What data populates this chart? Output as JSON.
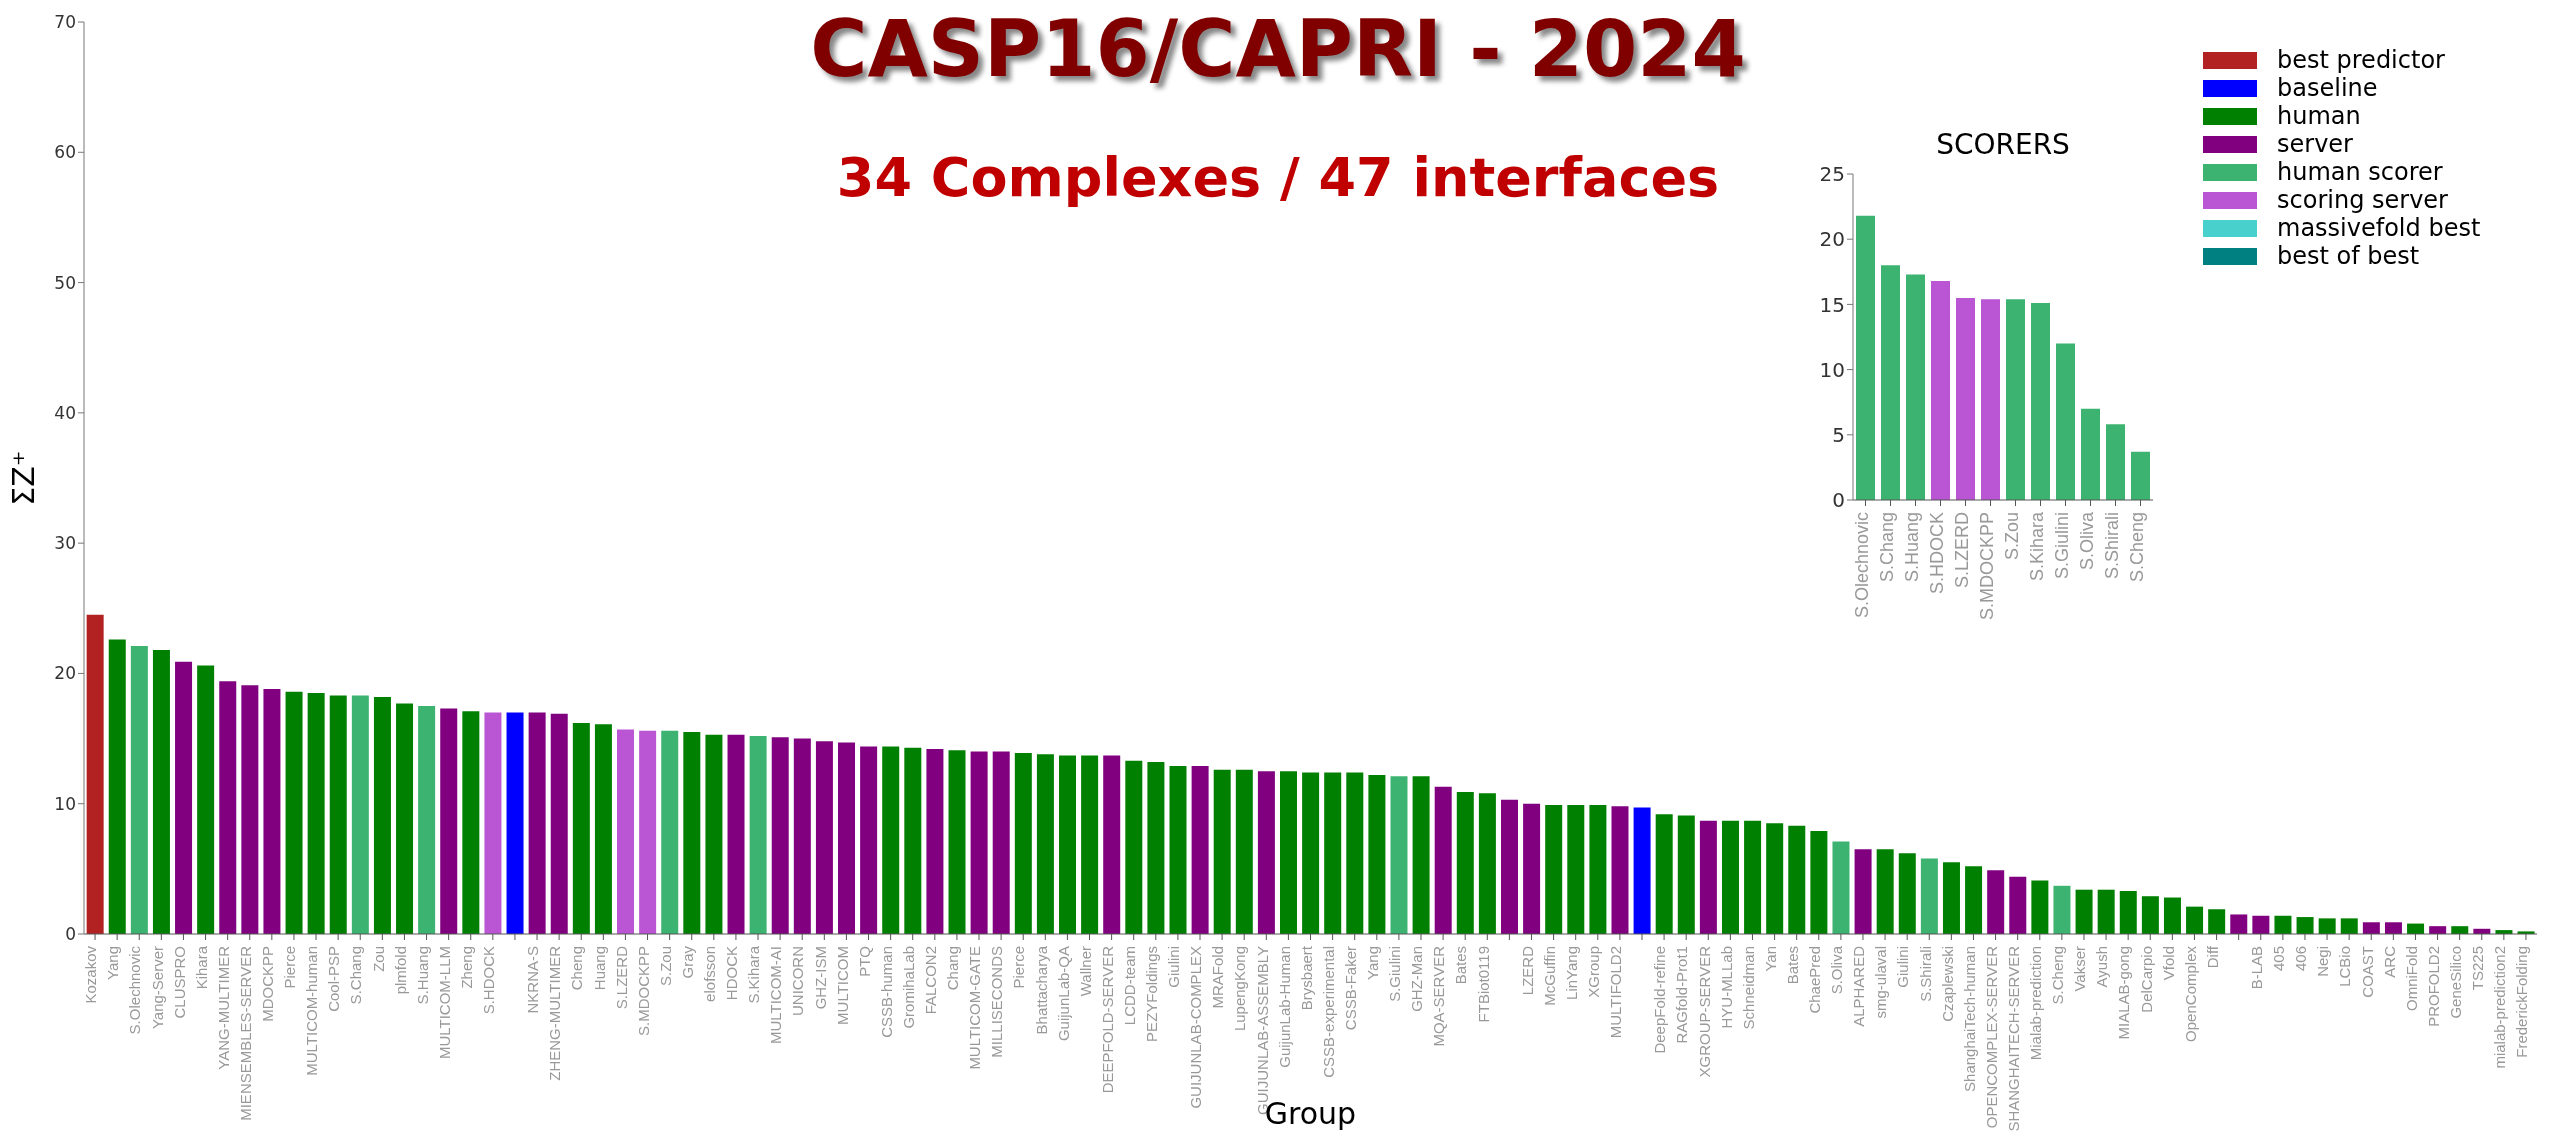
{
  "chart_data": [
    {
      "type": "bar",
      "title": "CASP16/CAPRI - 2024",
      "subtitle": "34 Complexes / 47 interfaces",
      "xlabel": "Group",
      "ylabel": "ΣZ⁺",
      "categories": [
        "Kozakov",
        "Yang",
        "S.Olechnovic",
        "Yang-Server",
        "CLUSPRO",
        "Kihara",
        "YANG-MULTIMER",
        "MIENSEMBLES-SERVER",
        "MDOCKPP",
        "Pierce",
        "MULTICOM-human",
        "Cool-PSP",
        "S.Chang",
        "Zou",
        "plmfold",
        "S.Huang",
        "MULTICOM-LLM",
        "Zheng",
        "S.HDOCK",
        null,
        "NKRNA-S",
        "ZHENG-MULTIMER",
        "Cheng",
        "Huang",
        "S.LZERD",
        "S.MDOCKPP",
        "S.Zou",
        "Gray",
        "elofsson",
        "HDOCK",
        "S.Kihara",
        "MULTICOM-AI",
        "UNICORN",
        "GHZ-ISM",
        "MULTICOM",
        "PTQ",
        "CSSB-human",
        "GromihaLab",
        "FALCON2",
        "Chang",
        "MULTICOM-GATE",
        "MILLISECONDS",
        "Pierce",
        "Bhattacharya",
        "GuijunLab-QA",
        "Wallner",
        "DEEPFOLD-SERVER",
        "LCDD-team",
        "PEZYFoldings",
        "Giulini",
        "GUIJUNLAB-COMPLEX",
        "MRAFold",
        "LupengKong",
        "GUIJUNLAB-ASSEMBLY",
        "GuijunLab-Human",
        "Brysbaert",
        "CSSB-experimental",
        "CSSB-Faker",
        "Yang",
        "S.Giulini",
        "GHZ-Man",
        "MQA-SERVER",
        "Bates",
        "FTBiot0119",
        null,
        "LZERD",
        "McGuffin",
        "LinYang",
        "XGroup",
        "MULTIFOLD2",
        null,
        "DeepFold-refine",
        "RAGfold-Prot1",
        "XGROUP-SERVER",
        "HYU-MLLab",
        "Schneidman",
        "Yan",
        "Bates",
        "ChaePred",
        "S.Oliva",
        "ALPHARED",
        "smg-ulaval",
        "Giulini",
        "S.Shirali",
        "Czaplewski",
        "ShanghaiTech-human",
        "OPENCOMPLEX-SERVER",
        "SHANGHAITECH-SERVER",
        "Mialab-prediction",
        "S.Cheng",
        "Vakser",
        "Ayush",
        "MIALAB-gong",
        "DelCarpio",
        "Vfold",
        "OpenComplex",
        "Diff",
        null,
        "B-LAB",
        "405",
        "406",
        "Negi",
        "LCBio",
        "COAST",
        "ARC",
        "OmniFold",
        "PROFOLD2",
        "GeneSilico",
        "TS225",
        "mialab-prediction2",
        "FrederickFolding"
      ],
      "stacked": true,
      "series": [
        {
          "name": "best predictor",
          "color": "#b22222",
          "values": [
            24.5,
            null,
            null,
            null,
            null,
            null,
            null,
            null,
            null,
            null,
            null,
            null,
            null,
            null,
            null,
            null,
            null,
            null,
            null,
            null,
            null,
            null,
            null,
            null,
            null,
            null,
            null,
            null,
            null,
            null,
            null,
            null,
            null,
            null,
            null,
            null,
            null,
            null,
            null,
            null,
            null,
            null,
            null,
            null,
            null,
            null,
            null,
            null,
            null,
            null,
            null,
            null,
            null,
            null,
            null,
            null,
            null,
            null,
            null,
            null,
            null,
            null,
            null,
            null,
            null,
            null,
            null,
            null,
            null,
            null,
            null,
            null,
            null,
            null,
            null,
            null,
            null,
            null,
            null,
            null,
            null,
            null,
            null,
            null,
            null,
            null,
            null,
            null,
            null,
            null,
            null,
            null,
            null,
            null,
            null,
            null,
            null,
            null,
            null,
            null,
            null,
            null,
            null,
            null,
            null,
            null,
            null,
            null,
            null,
            null,
            null
          ]
        },
        {
          "name": "baseline",
          "color": "#0000ff",
          "values": [
            null,
            null,
            null,
            null,
            null,
            null,
            null,
            null,
            null,
            null,
            null,
            null,
            null,
            null,
            null,
            null,
            null,
            null,
            null,
            17.0,
            null,
            null,
            null,
            null,
            null,
            null,
            null,
            null,
            null,
            null,
            null,
            null,
            null,
            null,
            null,
            null,
            null,
            null,
            null,
            null,
            null,
            null,
            null,
            null,
            null,
            null,
            null,
            null,
            null,
            null,
            null,
            null,
            null,
            null,
            null,
            null,
            null,
            null,
            null,
            null,
            null,
            null,
            null,
            null,
            null,
            null,
            null,
            null,
            null,
            null,
            9.7,
            null,
            null,
            null,
            null,
            null,
            null,
            null,
            null,
            null,
            null,
            null,
            null,
            null,
            null,
            null,
            null,
            null,
            null,
            null,
            null,
            null,
            null,
            null,
            null,
            null,
            null,
            null,
            null,
            null,
            null,
            null,
            null,
            null,
            null,
            null,
            null,
            null,
            null,
            null,
            null
          ]
        },
        {
          "name": "human",
          "color": "#008000",
          "values": [
            null,
            22.6,
            null,
            21.8,
            null,
            20.6,
            null,
            null,
            null,
            18.6,
            18.5,
            18.3,
            null,
            18.2,
            17.7,
            null,
            null,
            17.1,
            null,
            null,
            null,
            null,
            16.2,
            16.1,
            null,
            null,
            null,
            15.5,
            15.3,
            null,
            null,
            null,
            null,
            null,
            null,
            null,
            14.4,
            14.3,
            null,
            14.1,
            null,
            null,
            13.9,
            13.8,
            13.7,
            13.7,
            null,
            13.3,
            13.2,
            12.9,
            null,
            12.6,
            12.6,
            null,
            12.5,
            12.4,
            12.4,
            12.4,
            12.2,
            null,
            12.1,
            null,
            10.9,
            10.8,
            null,
            null,
            9.9,
            9.9,
            9.9,
            null,
            null,
            9.2,
            9.1,
            null,
            8.7,
            8.7,
            8.5,
            8.3,
            7.9,
            null,
            null,
            6.5,
            6.2,
            null,
            5.5,
            5.2,
            null,
            null,
            4.1,
            null,
            3.4,
            3.4,
            3.3,
            2.9,
            2.8,
            2.1,
            1.9,
            null,
            null,
            1.4,
            1.3,
            1.2,
            1.2,
            null,
            null,
            0.8,
            null,
            0.6,
            null,
            0.3,
            0.2
          ]
        },
        {
          "name": "server",
          "color": "#800080",
          "values": [
            null,
            null,
            null,
            null,
            20.9,
            null,
            19.4,
            19.1,
            18.8,
            null,
            null,
            null,
            null,
            null,
            null,
            null,
            17.3,
            null,
            null,
            null,
            17.0,
            16.9,
            null,
            null,
            null,
            null,
            null,
            null,
            null,
            15.3,
            null,
            15.1,
            15.0,
            14.8,
            14.7,
            14.4,
            null,
            null,
            14.2,
            null,
            14.0,
            14.0,
            null,
            null,
            null,
            null,
            13.7,
            null,
            null,
            null,
            12.9,
            null,
            null,
            12.5,
            null,
            null,
            null,
            null,
            null,
            null,
            null,
            11.3,
            null,
            null,
            10.3,
            10.0,
            null,
            null,
            null,
            9.8,
            null,
            null,
            null,
            8.7,
            null,
            null,
            null,
            null,
            null,
            null,
            6.5,
            null,
            null,
            null,
            null,
            null,
            4.9,
            4.4,
            null,
            null,
            null,
            null,
            null,
            null,
            null,
            null,
            null,
            1.5,
            1.4,
            null,
            null,
            null,
            null,
            0.9,
            0.9,
            null,
            0.6,
            null,
            0.4,
            null,
            null
          ]
        },
        {
          "name": "human scorer",
          "color": "#3cb371",
          "values": [
            null,
            null,
            22.1,
            null,
            null,
            null,
            null,
            null,
            null,
            null,
            null,
            null,
            18.3,
            null,
            null,
            17.5,
            null,
            null,
            null,
            null,
            null,
            null,
            null,
            null,
            null,
            null,
            15.6,
            null,
            null,
            null,
            15.2,
            null,
            null,
            null,
            null,
            null,
            null,
            null,
            null,
            null,
            null,
            null,
            null,
            null,
            null,
            null,
            null,
            null,
            null,
            null,
            null,
            null,
            null,
            null,
            null,
            null,
            null,
            null,
            null,
            12.1,
            null,
            null,
            null,
            null,
            null,
            null,
            null,
            null,
            null,
            null,
            null,
            null,
            null,
            null,
            null,
            null,
            null,
            null,
            null,
            7.1,
            null,
            null,
            null,
            5.8,
            null,
            null,
            null,
            null,
            null,
            3.7,
            null,
            null,
            null,
            null,
            null,
            null,
            null,
            null,
            null,
            null,
            null,
            null,
            null,
            null,
            null,
            null,
            null,
            null,
            null,
            null,
            null
          ]
        },
        {
          "name": "scoring server",
          "color": "#ba55d3",
          "values": [
            null,
            null,
            null,
            null,
            null,
            null,
            null,
            null,
            null,
            null,
            null,
            null,
            null,
            null,
            null,
            null,
            null,
            null,
            17.0,
            null,
            null,
            null,
            null,
            null,
            15.7,
            15.6,
            null,
            null,
            null,
            null,
            null,
            null,
            null,
            null,
            null,
            null,
            null,
            null,
            null,
            null,
            null,
            null,
            null,
            null,
            null,
            null,
            null,
            null,
            null,
            null,
            null,
            null,
            null,
            null,
            null,
            null,
            null,
            null,
            null,
            null,
            null,
            null,
            null,
            null,
            null,
            null,
            null,
            null,
            null,
            null,
            null,
            null,
            null,
            null,
            null,
            null,
            null,
            null,
            null,
            null,
            null,
            null,
            null,
            null,
            null,
            null,
            null,
            null,
            null,
            null,
            null,
            null,
            null,
            null,
            null,
            null,
            null,
            null,
            null,
            null,
            null,
            null,
            null,
            null,
            null,
            null,
            null,
            null,
            null,
            null,
            null
          ]
        },
        {
          "name": "massivefold best",
          "color": "#48d1cc",
          "values": [
            null,
            null,
            null,
            null,
            null,
            null,
            null,
            null,
            null,
            null,
            null,
            null,
            null,
            null,
            null,
            null,
            null,
            null,
            null,
            null,
            null,
            null,
            null,
            null,
            null,
            null,
            null,
            null,
            null,
            null,
            null,
            null,
            null,
            null,
            null,
            null,
            null,
            null,
            null,
            null,
            null,
            null,
            null,
            null,
            null,
            null,
            null,
            null,
            null,
            null,
            null,
            null,
            null,
            null,
            null,
            null,
            null,
            null,
            null,
            null,
            null,
            null,
            null,
            null,
            null,
            null,
            null,
            null,
            null,
            null,
            null,
            null,
            null,
            null,
            null,
            null,
            null,
            null,
            null,
            null,
            null,
            null,
            null,
            null,
            null,
            null,
            null,
            null,
            null,
            null,
            null,
            null,
            null,
            null,
            null,
            null,
            null,
            null,
            null,
            null,
            null,
            null,
            null,
            null,
            null,
            null,
            null,
            null,
            null,
            null,
            null
          ]
        },
        {
          "name": "best of best",
          "color": "#008080",
          "values": [
            null,
            null,
            null,
            null,
            null,
            null,
            null,
            null,
            null,
            null,
            null,
            null,
            null,
            null,
            null,
            null,
            null,
            null,
            null,
            null,
            null,
            null,
            null,
            null,
            null,
            null,
            null,
            null,
            null,
            null,
            null,
            null,
            null,
            null,
            null,
            null,
            null,
            null,
            null,
            null,
            null,
            null,
            null,
            null,
            null,
            null,
            null,
            null,
            null,
            null,
            null,
            null,
            null,
            null,
            null,
            null,
            null,
            null,
            null,
            null,
            null,
            null,
            null,
            null,
            null,
            null,
            null,
            null,
            null,
            null,
            null,
            null,
            null,
            null,
            null,
            null,
            null,
            null,
            null,
            null,
            null,
            null,
            null,
            null,
            null,
            null,
            null,
            null,
            null,
            null,
            null,
            null,
            null,
            null,
            null,
            null,
            null,
            null,
            null,
            null,
            null,
            null,
            null,
            null,
            null,
            null,
            null,
            null,
            null,
            null,
            null
          ]
        }
      ],
      "ylim": [
        0,
        70
      ],
      "yticks": [
        0,
        10,
        20,
        30,
        40,
        50,
        60,
        70
      ],
      "legend": "top right"
    },
    {
      "type": "bar",
      "title": "SCORERS",
      "categories": [
        "S.Olechnovic",
        "S.Chang",
        "S.Huang",
        "S.HDOCK",
        "S.LZERD",
        "S.MDOCKPP",
        "S.Zou",
        "S.Kihara",
        "S.Giulini",
        "S.Oliva",
        "S.Shirali",
        "S.Cheng"
      ],
      "values": [
        21.8,
        18.0,
        17.3,
        16.8,
        15.5,
        15.4,
        15.4,
        15.1,
        12.0,
        7.0,
        5.8,
        3.7
      ],
      "colors": [
        "#3cb371",
        "#3cb371",
        "#3cb371",
        "#ba55d3",
        "#ba55d3",
        "#ba55d3",
        "#3cb371",
        "#3cb371",
        "#3cb371",
        "#3cb371",
        "#3cb371",
        "#3cb371"
      ],
      "ylim": [
        0,
        25
      ],
      "yticks": [
        0,
        5,
        10,
        15,
        20,
        25
      ]
    }
  ]
}
